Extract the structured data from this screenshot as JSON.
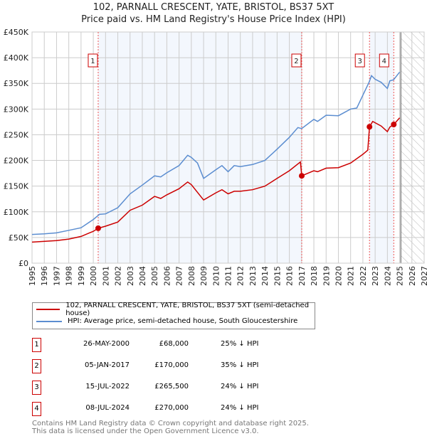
{
  "chart_data": {
    "type": "line",
    "title": "102, PARNALL CRESCENT, YATE, BRISTOL, BS37 5XT",
    "subtitle": "Price paid vs. HM Land Registry's House Price Index (HPI)",
    "xlim": [
      1995,
      2027
    ],
    "ylim": [
      0,
      450000
    ],
    "x_ticks": [
      "1995",
      "1996",
      "1997",
      "1998",
      "1999",
      "2000",
      "2001",
      "2002",
      "2003",
      "2004",
      "2005",
      "2006",
      "2007",
      "2008",
      "2009",
      "2010",
      "2011",
      "2012",
      "2013",
      "2014",
      "2015",
      "2016",
      "2017",
      "2018",
      "2019",
      "2020",
      "2021",
      "2022",
      "2023",
      "2024",
      "2025",
      "2026",
      "2027"
    ],
    "y_ticks": [
      {
        "v": 0,
        "label": "£0"
      },
      {
        "v": 50000,
        "label": "£50K"
      },
      {
        "v": 100000,
        "label": "£100K"
      },
      {
        "v": 150000,
        "label": "£150K"
      },
      {
        "v": 200000,
        "label": "£200K"
      },
      {
        "v": 250000,
        "label": "£250K"
      },
      {
        "v": 300000,
        "label": "£300K"
      },
      {
        "v": 350000,
        "label": "£350K"
      },
      {
        "v": 400000,
        "label": "£400K"
      },
      {
        "v": 450000,
        "label": "£450K"
      }
    ],
    "grid": true,
    "forecast_start": 2025.1,
    "series": [
      {
        "name": "102, PARNALL CRESCENT, YATE, BRISTOL, BS37 5XT (semi-detached house)",
        "color": "#cc0000",
        "x": [
          1995,
          1997,
          1998,
          1999,
          2000,
          2000.4,
          2001,
          2002,
          2003,
          2004,
          2005,
          2005.5,
          2006,
          2007,
          2007.7,
          2008,
          2009,
          2010,
          2010.5,
          2011,
          2011.5,
          2012,
          2013,
          2014,
          2015,
          2016,
          2016.9,
          2017.01,
          2018,
          2018.3,
          2019,
          2020,
          2021,
          2022,
          2022.4,
          2022.54,
          2022.8,
          2023.5,
          2024,
          2024.2,
          2024.52,
          2025
        ],
        "y": [
          41000,
          44000,
          47000,
          52000,
          62000,
          68000,
          72000,
          80000,
          103000,
          113000,
          130000,
          126000,
          133000,
          145000,
          158000,
          153000,
          123000,
          137000,
          143000,
          135000,
          140000,
          140000,
          143000,
          150000,
          165000,
          180000,
          197000,
          170000,
          180000,
          178000,
          185000,
          186000,
          195000,
          212000,
          220000,
          265500,
          276000,
          267000,
          256000,
          265000,
          270000,
          283000
        ]
      },
      {
        "name": "HPI: Average price, semi-detached house, South Gloucestershire",
        "color": "#5b8dd0",
        "x": [
          1995,
          1996,
          1997,
          1998,
          1999,
          2000,
          2000.5,
          2001,
          2002,
          2003,
          2004,
          2005,
          2005.5,
          2006,
          2007,
          2007.7,
          2008,
          2008.5,
          2009,
          2010,
          2010.5,
          2011,
          2011.5,
          2012,
          2013,
          2014,
          2015,
          2016,
          2016.7,
          2017,
          2018,
          2018.3,
          2019,
          2020,
          2021,
          2021.5,
          2022,
          2022.5,
          2022.7,
          2023,
          2023.5,
          2024,
          2024.2,
          2024.5,
          2025
        ],
        "y": [
          56000,
          57000,
          59000,
          64000,
          69000,
          85000,
          95000,
          96000,
          108000,
          135000,
          152000,
          170000,
          168000,
          176000,
          190000,
          210000,
          206000,
          195000,
          165000,
          182000,
          190000,
          178000,
          190000,
          188000,
          192000,
          200000,
          222000,
          245000,
          264000,
          262000,
          280000,
          276000,
          288000,
          287000,
          300000,
          302000,
          327000,
          352000,
          365000,
          358000,
          352000,
          340000,
          355000,
          357000,
          372000
        ]
      }
    ],
    "sales": [
      {
        "n": "1",
        "x": 2000.4,
        "date": "26-MAY-2000",
        "price": "£68,000",
        "value": 68000,
        "hpi": "25% ↓ HPI"
      },
      {
        "n": "2",
        "x": 2017.01,
        "date": "05-JAN-2017",
        "price": "£170,000",
        "value": 170000,
        "hpi": "35% ↓ HPI"
      },
      {
        "n": "3",
        "x": 2022.54,
        "date": "15-JUL-2022",
        "price": "£265,500",
        "value": 265500,
        "hpi": "24% ↓ HPI"
      },
      {
        "n": "4",
        "x": 2024.52,
        "date": "08-JUL-2024",
        "price": "£270,000",
        "value": 270000,
        "hpi": "24% ↓ HPI"
      }
    ]
  },
  "footer": {
    "line1": "Contains HM Land Registry data © Crown copyright and database right 2025.",
    "line2": "This data is licensed under the Open Government Licence v3.0."
  }
}
